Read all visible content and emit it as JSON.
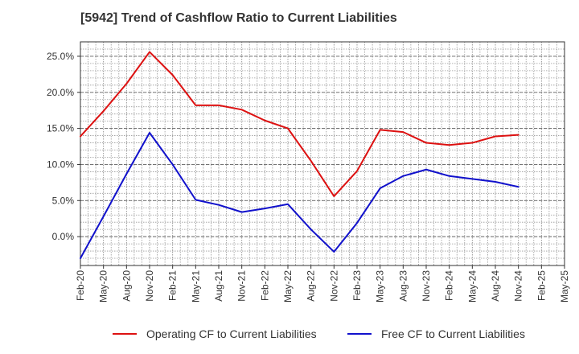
{
  "chart_data": {
    "type": "line",
    "title": "[5942]  Trend of Cashflow Ratio to Current Liabilities",
    "xlabel": "",
    "ylabel": "",
    "categories": [
      "Feb-20",
      "May-20",
      "Aug-20",
      "Nov-20",
      "Feb-21",
      "May-21",
      "Aug-21",
      "Nov-21",
      "Feb-22",
      "May-22",
      "Aug-22",
      "Nov-22",
      "Feb-23",
      "May-23",
      "Aug-23",
      "Nov-23",
      "Feb-24",
      "May-24",
      "Aug-24",
      "Nov-24",
      "Feb-25",
      "May-25"
    ],
    "yticks": [
      0,
      5,
      10,
      15,
      20,
      25
    ],
    "ytick_labels": [
      "0.0%",
      "5.0%",
      "10.0%",
      "15.0%",
      "20.0%",
      "25.0%"
    ],
    "ylim": [
      -4,
      27
    ],
    "grid": true,
    "legend_position": "bottom",
    "series": [
      {
        "name": "Operating CF to Current Liabilities",
        "color": "#dd1111",
        "values": [
          13.9,
          17.4,
          21.2,
          25.6,
          22.4,
          18.2,
          18.2,
          17.6,
          16.1,
          15.0,
          10.5,
          5.6,
          9.1,
          14.8,
          14.5,
          13.0,
          12.7,
          13.0,
          13.9,
          14.1,
          null,
          null
        ]
      },
      {
        "name": "Free CF to Current Liabilities",
        "color": "#1111cc",
        "values": [
          -3.0,
          2.8,
          8.7,
          14.4,
          10.0,
          5.1,
          4.4,
          3.4,
          3.9,
          4.5,
          1.0,
          -2.1,
          1.9,
          6.7,
          8.4,
          9.3,
          8.4,
          8.0,
          7.6,
          6.9,
          null,
          null
        ]
      }
    ]
  }
}
